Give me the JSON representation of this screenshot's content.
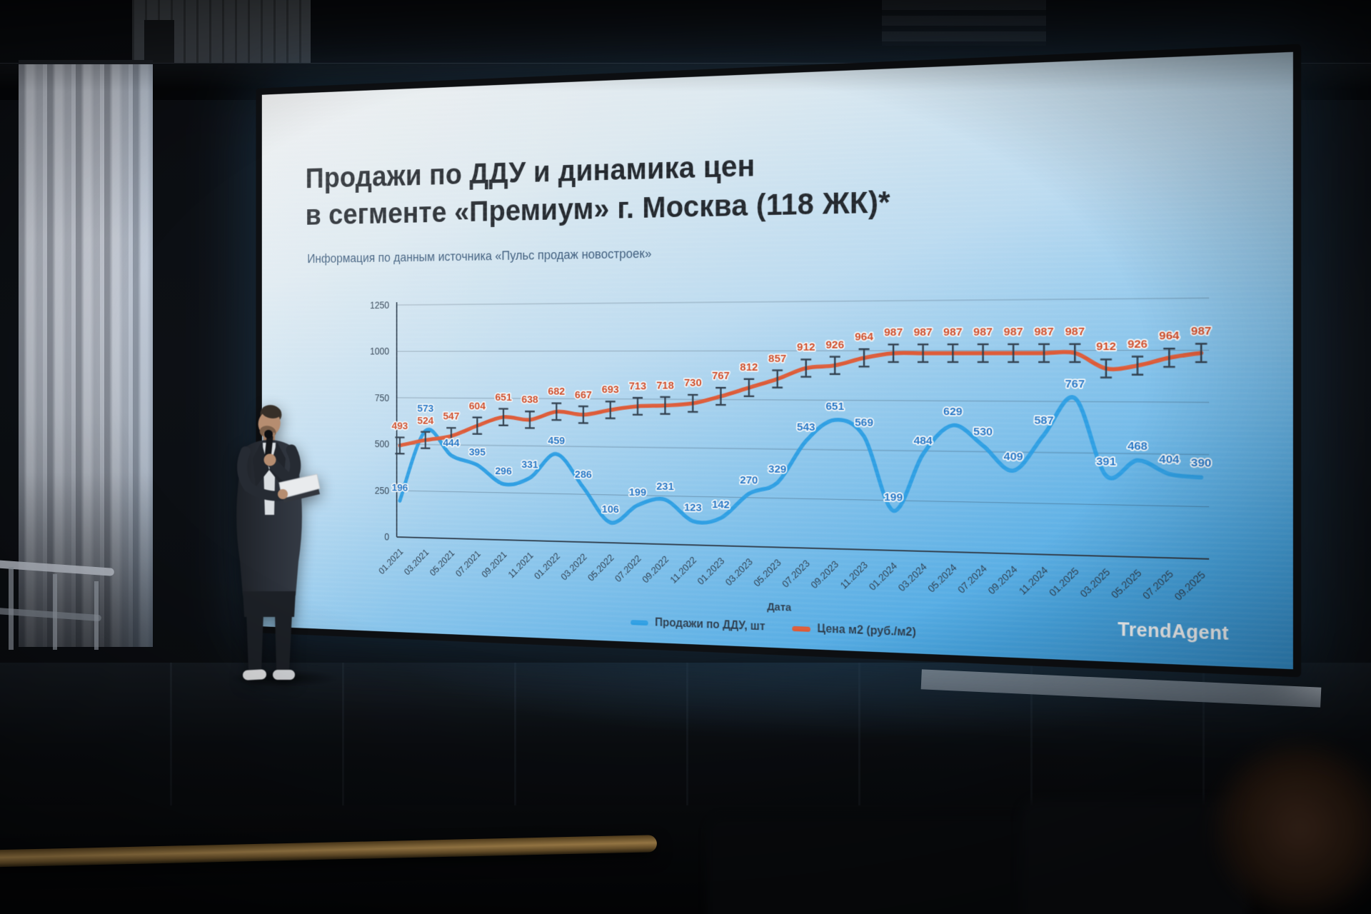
{
  "slide": {
    "title_line1": "Продажи по ДДУ и динамика цен",
    "title_line2": "в сегменте «Премиум» г. Москва (118 ЖК)*",
    "subtitle": "Информация по данным источника «Пульс продаж новостроек»",
    "logo_text": "TrendAgent"
  },
  "chart_data": {
    "type": "line",
    "title": "",
    "xlabel": "Дата",
    "ylabel": "",
    "ylim": [
      0,
      1250
    ],
    "yticks": [
      0,
      250,
      500,
      750,
      1000,
      1250
    ],
    "grid": true,
    "legend_position": "bottom",
    "categories": [
      "01.2021",
      "03.2021",
      "05.2021",
      "07.2021",
      "09.2021",
      "11.2021",
      "01.2022",
      "03.2022",
      "05.2022",
      "07.2022",
      "09.2022",
      "11.2022",
      "01.2023",
      "03.2023",
      "05.2023",
      "07.2023",
      "09.2023",
      "11.2023",
      "01.2024",
      "03.2024",
      "05.2024",
      "07.2024",
      "09.2024",
      "11.2024",
      "01.2025",
      "03.2025",
      "05.2025",
      "07.2025",
      "09.2025"
    ],
    "series": [
      {
        "name": "Продажи по ДДУ, шт",
        "color": "#2f9fe3",
        "line_style": "smooth",
        "values": [
          196,
          573,
          444,
          395,
          296,
          331,
          459,
          286,
          106,
          199,
          231,
          123,
          142,
          270,
          329,
          543,
          651,
          569,
          199,
          484,
          629,
          530,
          409,
          587,
          767,
          391,
          468,
          404,
          390
        ]
      },
      {
        "name": "Цена м2 (руб./м2)",
        "color": "#dd5b38",
        "line_style": "smooth",
        "marker": "error-bar",
        "values": [
          493,
          524,
          547,
          604,
          651,
          638,
          682,
          667,
          693,
          713,
          718,
          730,
          767,
          812,
          857,
          912,
          926,
          964,
          987,
          987,
          987,
          987,
          987,
          987,
          987,
          912,
          926,
          964,
          987
        ]
      }
    ],
    "colors": {
      "axis": "#2e3f50",
      "grid": "rgba(46,63,80,0.35)",
      "sales_label": "#2677c6",
      "price_label": "#cf4f2c",
      "marker": "#303f4e",
      "halo": "#f2f6f9"
    }
  }
}
